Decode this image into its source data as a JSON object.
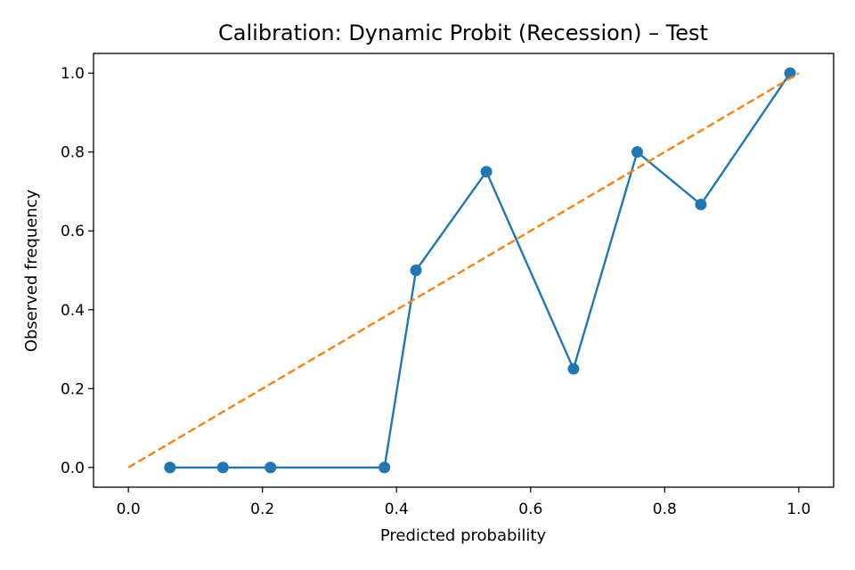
{
  "chart_data": {
    "type": "line",
    "title": "Calibration: Dynamic Probit (Recession) – Test",
    "xlabel": "Predicted probability",
    "ylabel": "Observed frequency",
    "xlim": [
      -0.052,
      1.052
    ],
    "ylim": [
      -0.05,
      1.05
    ],
    "x_ticks": [
      "0.0",
      "0.2",
      "0.4",
      "0.6",
      "0.8",
      "1.0"
    ],
    "y_ticks": [
      "0.0",
      "0.2",
      "0.4",
      "0.6",
      "0.8",
      "1.0"
    ],
    "grid": false,
    "series": [
      {
        "color": "#1f77b4",
        "style": "solid",
        "marker": "circle",
        "x": [
          0.062,
          0.141,
          0.212,
          0.382,
          0.429,
          0.534,
          0.664,
          0.759,
          0.854,
          0.987
        ],
        "y": [
          0.0,
          0.0,
          0.0,
          0.0,
          0.5,
          0.75,
          0.25,
          0.8,
          0.667,
          1.0
        ]
      },
      {
        "color": "#ff7f0e",
        "style": "dashed",
        "marker": "none",
        "x": [
          0.0,
          1.0
        ],
        "y": [
          0.0,
          1.0
        ]
      }
    ]
  }
}
